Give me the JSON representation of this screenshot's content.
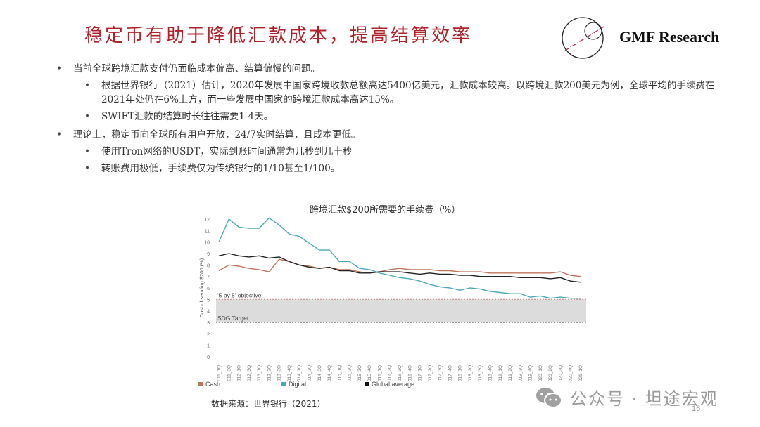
{
  "slide": {
    "title": "稳定币有助于降低汇款成本，提高结算效率",
    "logo_text": "GMF Research",
    "page_number": "16"
  },
  "bullets": [
    {
      "text": "当前全球跨境汇款支付仍面临成本偏高、结算偏慢的问题。",
      "children": [
        "根据世界银行（2021）估计，2020年发展中国家跨境收款总额高达5400亿美元，汇款成本较高。以跨境汇款200美元为例，全球平均的手续费在2021年处仍在6%上方，而一些发展中国家的跨境汇款成本高达15%。",
        "SWIFT汇款的结算时长往往需要1-4天。"
      ]
    },
    {
      "text": "理论上，稳定币向全球所有用户开放，24/7实时结算，且成本更低。",
      "children": [
        "使用Tron网络的USDT，实际到账时间通常为几秒到几十秒",
        "转账费用极低，手续费仅为传统银行的1/10甚至1/100。"
      ]
    }
  ],
  "source": "数据来源：世界银行（2021）",
  "watermark": {
    "text": "公众号 · 坦途宏观",
    "icon": "wechat-icon"
  },
  "chart_data": {
    "type": "line",
    "title": "跨境汇款$200所需要的手续费（%）",
    "xlabel": "",
    "ylabel": "Cost of sending $200 (%)",
    "ylim": [
      0,
      12
    ],
    "yticks": [
      0,
      1,
      2,
      3,
      4,
      5,
      6,
      7,
      8,
      9,
      10,
      11,
      12
    ],
    "grid": false,
    "legend_position": "bottom",
    "categories": [
      "2011_1Q",
      "2011_3Q",
      "2012_1Q",
      "2012_3Q",
      "2013_1Q",
      "2013_2Q",
      "2013_3Q",
      "2013_4Q",
      "2014_1Q",
      "2014_2Q",
      "2014_3Q",
      "2014_4Q",
      "2015_1Q",
      "2015_2Q",
      "2015_3Q",
      "2015_4Q",
      "2016_1Q",
      "2016_2Q",
      "2016_3Q",
      "2016_4Q",
      "2017_1Q",
      "2017_2Q",
      "2017_3Q",
      "2017_4Q",
      "2018_1Q",
      "2018_2Q",
      "2018_3Q",
      "2018_4Q",
      "2019_1Q",
      "2019_2Q",
      "2019_3Q",
      "2019_4Q",
      "2020_1Q",
      "2020_2Q",
      "2020_3Q",
      "2020_4Q",
      "2021_1Q"
    ],
    "series": [
      {
        "name": "Cash",
        "color": "#c0735a",
        "values": [
          7.5,
          8.0,
          7.9,
          7.7,
          7.6,
          7.4,
          8.5,
          8.3,
          8.0,
          7.9,
          7.7,
          7.8,
          7.6,
          7.6,
          7.4,
          7.3,
          7.4,
          7.6,
          7.7,
          7.6,
          7.6,
          7.6,
          7.5,
          7.5,
          7.4,
          7.4,
          7.4,
          7.3,
          7.3,
          7.3,
          7.3,
          7.3,
          7.3,
          7.3,
          7.4,
          7.1,
          7.0
        ]
      },
      {
        "name": "Digital",
        "color": "#4aa9b8",
        "values": [
          10.0,
          12.0,
          11.3,
          11.2,
          11.2,
          12.1,
          11.5,
          10.7,
          10.5,
          9.9,
          9.3,
          9.3,
          8.3,
          8.3,
          7.7,
          7.6,
          7.3,
          7.1,
          6.9,
          6.8,
          6.6,
          6.3,
          6.1,
          6.0,
          5.8,
          6.0,
          5.9,
          5.7,
          5.6,
          5.5,
          5.5,
          5.2,
          5.3,
          5.1,
          5.2,
          5.1,
          5.1
        ]
      },
      {
        "name": "Global average",
        "color": "#222222",
        "values": [
          8.8,
          9.0,
          8.8,
          8.7,
          8.8,
          8.6,
          8.7,
          8.3,
          8.0,
          7.8,
          7.7,
          7.8,
          7.5,
          7.5,
          7.3,
          7.3,
          7.4,
          7.4,
          7.4,
          7.3,
          7.2,
          7.3,
          7.2,
          7.2,
          7.1,
          7.1,
          7.0,
          7.0,
          7.0,
          7.0,
          6.9,
          6.9,
          6.9,
          6.8,
          6.9,
          6.6,
          6.5
        ]
      }
    ],
    "annotations": [
      {
        "label": "'5 by 5' objective",
        "y": 5,
        "style": "dotted",
        "color": "#c8908a"
      },
      {
        "label": "SDG Target",
        "y": 3,
        "style": "dotted",
        "color": "#666666"
      }
    ],
    "shaded_band": {
      "from": 3,
      "to": 5,
      "color": "#dcdcdc"
    }
  }
}
